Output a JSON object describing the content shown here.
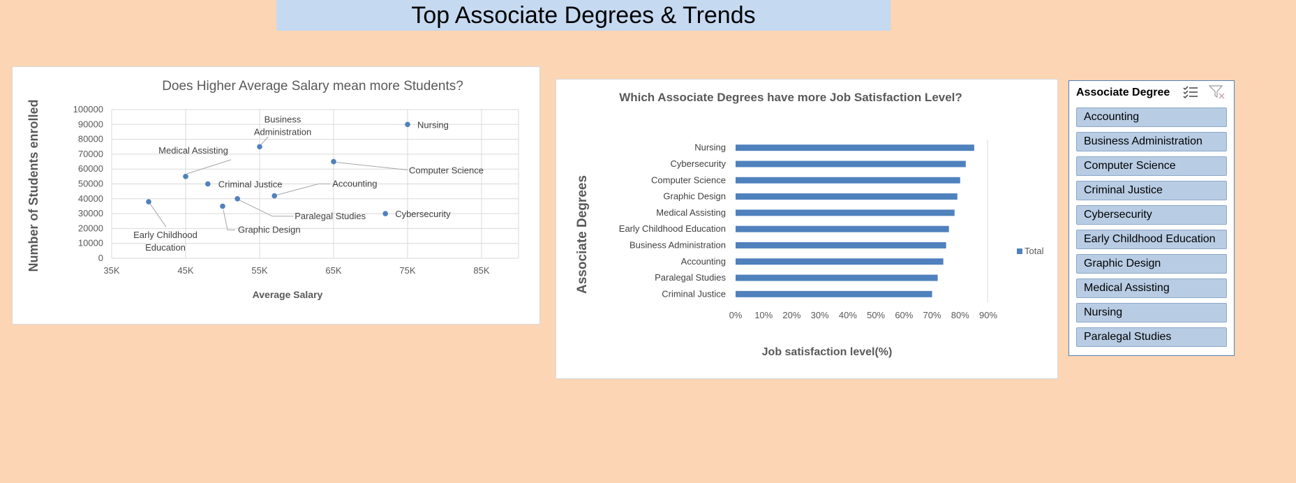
{
  "page": {
    "title": "Top Associate Degrees & Trends"
  },
  "chart_data": [
    {
      "type": "scatter",
      "title": "Does Higher Average Salary mean more Students?",
      "xlabel": "Average Salary",
      "ylabel": "Number of Students enrolled",
      "xlim": [
        35000,
        90000
      ],
      "ylim": [
        0,
        100000
      ],
      "x_ticks": [
        "35K",
        "45K",
        "55K",
        "65K",
        "75K",
        "85K"
      ],
      "y_ticks": [
        "0",
        "10000",
        "20000",
        "30000",
        "40000",
        "50000",
        "60000",
        "70000",
        "80000",
        "90000",
        "100000"
      ],
      "grid": true,
      "points": [
        {
          "label": "Nursing",
          "x": 75000,
          "y": 90000
        },
        {
          "label": "Business Administration",
          "x": 55000,
          "y": 75000
        },
        {
          "label": "Medical Assisting",
          "x": 45000,
          "y": 55000
        },
        {
          "label": "Computer Science",
          "x": 65000,
          "y": 65000
        },
        {
          "label": "Criminal Justice",
          "x": 48000,
          "y": 50000
        },
        {
          "label": "Accounting",
          "x": 57000,
          "y": 42000
        },
        {
          "label": "Paralegal Studies",
          "x": 52000,
          "y": 40000
        },
        {
          "label": "Early Childhood Education",
          "x": 40000,
          "y": 38000
        },
        {
          "label": "Graphic Design",
          "x": 50000,
          "y": 35000
        },
        {
          "label": "Cybersecurity",
          "x": 72000,
          "y": 30000
        }
      ],
      "color": "#4f81bd"
    },
    {
      "type": "bar",
      "orientation": "horizontal",
      "title": "Which Associate Degrees have more Job Satisfaction Level?",
      "xlabel": "Job satisfaction level(%)",
      "ylabel": "Associate Degrees",
      "categories": [
        "Nursing",
        "Cybersecurity",
        "Computer Science",
        "Graphic Design",
        "Medical Assisting",
        "Early Childhood Education",
        "Business Administration",
        "Accounting",
        "Paralegal Studies",
        "Criminal Justice"
      ],
      "series": [
        {
          "name": "Total",
          "values": [
            85,
            82,
            80,
            79,
            78,
            76,
            75,
            74,
            72,
            70
          ]
        }
      ],
      "xlim": [
        0,
        90
      ],
      "x_ticks": [
        "0%",
        "10%",
        "20%",
        "30%",
        "40%",
        "50%",
        "60%",
        "70%",
        "80%",
        "90%"
      ],
      "legend": "right",
      "color": "#4f81bd"
    }
  ],
  "slicer": {
    "title": "Associate Degree",
    "items": [
      "Accounting",
      "Business Administration",
      "Computer Science",
      "Criminal Justice",
      "Cybersecurity",
      "Early Childhood Education",
      "Graphic Design",
      "Medical Assisting",
      "Nursing",
      "Paralegal Studies"
    ],
    "icons": {
      "multi_select": "multi-select-icon",
      "clear_filter": "clear-filter-icon"
    }
  }
}
